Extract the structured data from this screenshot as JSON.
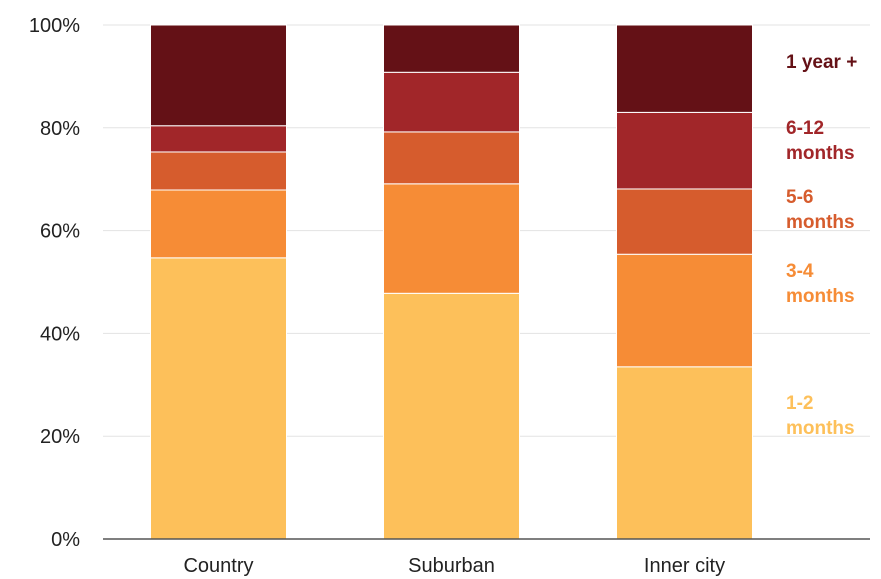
{
  "chart_data": {
    "type": "bar",
    "stacked": true,
    "categories": [
      "Country",
      "Suburban",
      "Inner city"
    ],
    "series": [
      {
        "name": "1-2 months",
        "label_lines": [
          "1-2",
          "months"
        ],
        "color": "#fdc05a",
        "values": [
          54.7,
          47.8,
          33.5
        ]
      },
      {
        "name": "3-4 months",
        "label_lines": [
          "3-4",
          "months"
        ],
        "color": "#f68c36",
        "values": [
          13.2,
          21.3,
          21.9
        ]
      },
      {
        "name": "5-6 months",
        "label_lines": [
          "5-6",
          "months"
        ],
        "color": "#d65c2d",
        "values": [
          7.4,
          10.1,
          12.7
        ]
      },
      {
        "name": "6-12 months",
        "label_lines": [
          "6-12",
          "months"
        ],
        "color": "#a12629",
        "values": [
          5.1,
          11.6,
          14.9
        ]
      },
      {
        "name": "1 year +",
        "label_lines": [
          "1 year +"
        ],
        "color": "#641116",
        "values": [
          19.6,
          9.2,
          17.0
        ]
      }
    ],
    "y_ticks": [
      "0%",
      "20%",
      "40%",
      "60%",
      "80%",
      "100%"
    ],
    "ylim": [
      0,
      100
    ],
    "grid": true,
    "legend_position": "right"
  }
}
